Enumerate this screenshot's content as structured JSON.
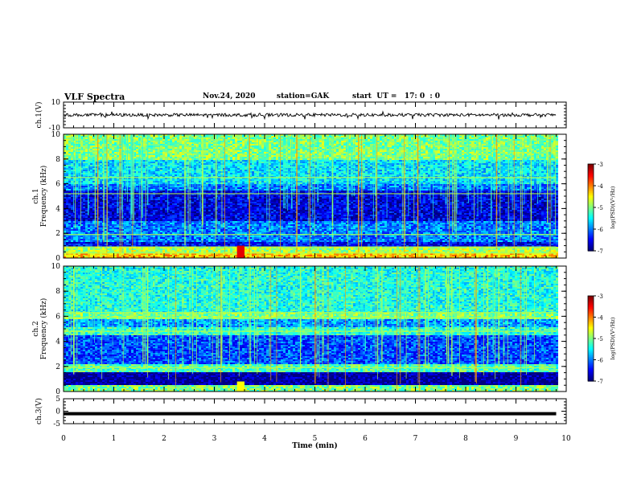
{
  "header": {
    "title": "VLF Spectra",
    "date": "Nov.24, 2020",
    "station": "station=GAK",
    "start": "start  UT =   17: 0  : 0"
  },
  "chart_data": [
    {
      "type": "line",
      "panel": "ch1-waveform",
      "ylabel": "ch.1(V)",
      "ylim": [
        -10,
        10
      ],
      "yticks": [
        "10",
        "-10"
      ],
      "xlim": [
        0,
        10
      ],
      "trace_level": 0
    },
    {
      "type": "heatmap",
      "panel": "ch1-spectrogram",
      "ylabel_top": "ch.1",
      "ylabel": "Frequency (kHz)",
      "ylim": [
        0,
        10
      ],
      "yticks": [
        "0",
        "2",
        "4",
        "6",
        "8",
        "10"
      ],
      "xlim": [
        0,
        9.8
      ],
      "colorbar": {
        "label": "log(PSD)(V²/Hz)",
        "range": [
          -7,
          -3
        ],
        "ticks": [
          "-3",
          "-4",
          "-5",
          "-6",
          "-7"
        ]
      },
      "bands": [
        {
          "from": 0.0,
          "to": 0.5,
          "level": -4.3
        },
        {
          "from": 0.5,
          "to": 1.0,
          "level": -4.8
        },
        {
          "from": 1.0,
          "to": 1.4,
          "level": -6.5
        },
        {
          "from": 1.4,
          "to": 3.0,
          "level": -6.0
        },
        {
          "from": 3.0,
          "to": 5.5,
          "level": -6.6
        },
        {
          "from": 5.5,
          "to": 6.0,
          "level": -6.0
        },
        {
          "from": 6.0,
          "to": 8.0,
          "level": -5.6
        },
        {
          "from": 8.0,
          "to": 10.0,
          "level": -5.0
        }
      ],
      "tones_khz": [
        0.4,
        0.9,
        1.9,
        5.2,
        6.5
      ],
      "burst": {
        "t": [
          3.45,
          3.6
        ],
        "f": [
          0,
          1.0
        ],
        "level": -3.4
      }
    },
    {
      "type": "heatmap",
      "panel": "ch2-spectrogram",
      "ylabel_top": "ch.2",
      "ylabel": "Frequency (kHz)",
      "ylim": [
        0,
        10
      ],
      "yticks": [
        "0",
        "2",
        "4",
        "6",
        "8",
        "10"
      ],
      "xlim": [
        0,
        9.8
      ],
      "colorbar": {
        "label": "log(PSD)(V²/Hz)",
        "range": [
          -7,
          -3
        ],
        "ticks": [
          "-3",
          "-4",
          "-5",
          "-6",
          "-7"
        ]
      },
      "bands": [
        {
          "from": 0.0,
          "to": 0.6,
          "level": -5.0
        },
        {
          "from": 0.6,
          "to": 1.6,
          "level": -6.9
        },
        {
          "from": 1.6,
          "to": 2.2,
          "level": -5.2
        },
        {
          "from": 2.2,
          "to": 4.5,
          "level": -6.2
        },
        {
          "from": 4.5,
          "to": 5.2,
          "level": -5.3
        },
        {
          "from": 5.2,
          "to": 5.8,
          "level": -5.9
        },
        {
          "from": 5.8,
          "to": 6.4,
          "level": -5.0
        },
        {
          "from": 6.4,
          "to": 10.0,
          "level": -5.4
        }
      ],
      "tones_khz": [
        1.9,
        4.8,
        5.9,
        6.3
      ],
      "burst": {
        "t": [
          3.45,
          3.6
        ],
        "f": [
          0,
          0.8
        ],
        "level": -4.5
      }
    },
    {
      "type": "line",
      "panel": "ch3-waveform",
      "ylabel": "ch.3(V)",
      "ylim": [
        -5,
        5
      ],
      "yticks": [
        "5",
        "0",
        "-5"
      ],
      "xlim": [
        0,
        10
      ],
      "trace_level": -1
    }
  ],
  "xaxis": {
    "label": "Time  (min)",
    "ticks": [
      "0",
      "1",
      "2",
      "3",
      "4",
      "5",
      "6",
      "7",
      "8",
      "9",
      "10"
    ]
  },
  "colors": {
    "frame": "#000000",
    "background": "#ffffff"
  }
}
